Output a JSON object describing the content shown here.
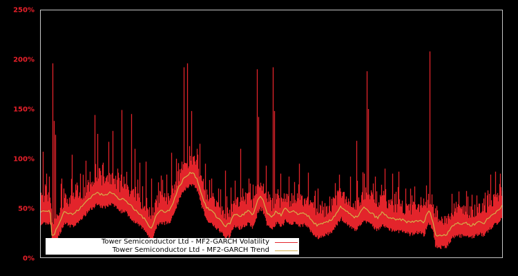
{
  "chart_data": {
    "type": "line",
    "title": "",
    "xlabel": "",
    "ylabel": "",
    "ylim": [
      0,
      250
    ],
    "yticks": [
      "0%",
      "50%",
      "100%",
      "150%",
      "200%",
      "250%"
    ],
    "ytick_values": [
      0,
      50,
      100,
      150,
      200,
      250
    ],
    "grid": false,
    "legend_position": "lower-left",
    "background": "#000000",
    "axis_color": "#c8c8c8",
    "series": [
      {
        "name": "Tower Semiconductor Ltd - MF2-GARCH Volatility",
        "color": "#e3242b",
        "band_low_offset": [
          -14,
          -10
        ],
        "band_high_offset": [
          6,
          20
        ],
        "spikes": [
          {
            "x": 0.004,
            "value": 107
          },
          {
            "x": 0.012,
            "value": 85
          },
          {
            "x": 0.018,
            "value": 82
          },
          {
            "x": 0.025,
            "value": 196
          },
          {
            "x": 0.028,
            "value": 138
          },
          {
            "x": 0.032,
            "value": 124
          },
          {
            "x": 0.045,
            "value": 80
          },
          {
            "x": 0.05,
            "value": 70
          },
          {
            "x": 0.068,
            "value": 104
          },
          {
            "x": 0.078,
            "value": 76
          },
          {
            "x": 0.085,
            "value": 85
          },
          {
            "x": 0.098,
            "value": 98
          },
          {
            "x": 0.106,
            "value": 87
          },
          {
            "x": 0.117,
            "value": 144
          },
          {
            "x": 0.123,
            "value": 125
          },
          {
            "x": 0.135,
            "value": 96
          },
          {
            "x": 0.146,
            "value": 117
          },
          {
            "x": 0.155,
            "value": 128
          },
          {
            "x": 0.166,
            "value": 90
          },
          {
            "x": 0.175,
            "value": 149
          },
          {
            "x": 0.18,
            "value": 82
          },
          {
            "x": 0.196,
            "value": 145
          },
          {
            "x": 0.203,
            "value": 110
          },
          {
            "x": 0.214,
            "value": 96
          },
          {
            "x": 0.227,
            "value": 97
          },
          {
            "x": 0.24,
            "value": 80
          },
          {
            "x": 0.26,
            "value": 83
          },
          {
            "x": 0.272,
            "value": 84
          },
          {
            "x": 0.283,
            "value": 106
          },
          {
            "x": 0.293,
            "value": 100
          },
          {
            "x": 0.305,
            "value": 97
          },
          {
            "x": 0.31,
            "value": 192
          },
          {
            "x": 0.318,
            "value": 196
          },
          {
            "x": 0.327,
            "value": 148
          },
          {
            "x": 0.338,
            "value": 110
          },
          {
            "x": 0.345,
            "value": 115
          },
          {
            "x": 0.356,
            "value": 95
          },
          {
            "x": 0.37,
            "value": 80
          },
          {
            "x": 0.385,
            "value": 70
          },
          {
            "x": 0.4,
            "value": 88
          },
          {
            "x": 0.42,
            "value": 78
          },
          {
            "x": 0.433,
            "value": 110
          },
          {
            "x": 0.45,
            "value": 80
          },
          {
            "x": 0.468,
            "value": 190
          },
          {
            "x": 0.472,
            "value": 142
          },
          {
            "x": 0.488,
            "value": 93
          },
          {
            "x": 0.503,
            "value": 192
          },
          {
            "x": 0.506,
            "value": 148
          },
          {
            "x": 0.52,
            "value": 85
          },
          {
            "x": 0.538,
            "value": 82
          },
          {
            "x": 0.56,
            "value": 95
          },
          {
            "x": 0.58,
            "value": 86
          },
          {
            "x": 0.6,
            "value": 70
          },
          {
            "x": 0.625,
            "value": 62
          },
          {
            "x": 0.645,
            "value": 68
          },
          {
            "x": 0.67,
            "value": 82
          },
          {
            "x": 0.684,
            "value": 118
          },
          {
            "x": 0.7,
            "value": 85
          },
          {
            "x": 0.706,
            "value": 188
          },
          {
            "x": 0.709,
            "value": 150
          },
          {
            "x": 0.725,
            "value": 82
          },
          {
            "x": 0.745,
            "value": 90
          },
          {
            "x": 0.762,
            "value": 85
          },
          {
            "x": 0.775,
            "value": 87
          },
          {
            "x": 0.79,
            "value": 70
          },
          {
            "x": 0.81,
            "value": 72
          },
          {
            "x": 0.83,
            "value": 60
          },
          {
            "x": 0.843,
            "value": 208
          },
          {
            "x": 0.86,
            "value": 48
          },
          {
            "x": 0.89,
            "value": 60
          },
          {
            "x": 0.905,
            "value": 67
          },
          {
            "x": 0.925,
            "value": 62
          },
          {
            "x": 0.945,
            "value": 63
          },
          {
            "x": 0.96,
            "value": 60
          },
          {
            "x": 0.975,
            "value": 84
          },
          {
            "x": 0.985,
            "value": 87
          },
          {
            "x": 0.995,
            "value": 85
          }
        ]
      },
      {
        "name": "Tower Semiconductor Ltd - MF2-GARCH Trend",
        "color": "#d4b04a",
        "x": [
          0,
          0.02,
          0.022,
          0.024,
          0.03,
          0.04,
          0.05,
          0.06,
          0.07,
          0.08,
          0.09,
          0.1,
          0.11,
          0.12,
          0.13,
          0.14,
          0.15,
          0.16,
          0.17,
          0.18,
          0.19,
          0.2,
          0.21,
          0.22,
          0.23,
          0.24,
          0.25,
          0.26,
          0.27,
          0.28,
          0.29,
          0.3,
          0.31,
          0.32,
          0.33,
          0.34,
          0.35,
          0.36,
          0.37,
          0.38,
          0.39,
          0.4,
          0.41,
          0.42,
          0.43,
          0.44,
          0.45,
          0.46,
          0.47,
          0.475,
          0.48,
          0.49,
          0.5,
          0.51,
          0.52,
          0.53,
          0.54,
          0.55,
          0.56,
          0.57,
          0.58,
          0.59,
          0.6,
          0.61,
          0.62,
          0.63,
          0.64,
          0.65,
          0.66,
          0.67,
          0.68,
          0.69,
          0.7,
          0.71,
          0.72,
          0.73,
          0.74,
          0.75,
          0.76,
          0.77,
          0.78,
          0.79,
          0.8,
          0.81,
          0.82,
          0.83,
          0.84,
          0.845,
          0.85,
          0.855,
          0.86,
          0.87,
          0.88,
          0.89,
          0.9,
          0.91,
          0.92,
          0.93,
          0.94,
          0.95,
          0.96,
          0.97,
          0.98,
          0.99,
          1.0
        ],
        "values": [
          47,
          47,
          44,
          22,
          25,
          36,
          47,
          45,
          44,
          48,
          52,
          58,
          62,
          66,
          64,
          63,
          67,
          65,
          58,
          60,
          55,
          50,
          46,
          42,
          36,
          30,
          43,
          48,
          47,
          48,
          60,
          72,
          80,
          84,
          87,
          78,
          62,
          50,
          48,
          42,
          38,
          32,
          35,
          45,
          42,
          44,
          48,
          42,
          58,
          62,
          60,
          46,
          40,
          48,
          43,
          50,
          45,
          47,
          44,
          46,
          42,
          36,
          33,
          34,
          36,
          38,
          45,
          52,
          48,
          44,
          40,
          44,
          51,
          47,
          44,
          40,
          46,
          42,
          40,
          38,
          39,
          37,
          36,
          37,
          38,
          35,
          48,
          44,
          38,
          24,
          22,
          23,
          24,
          32,
          35,
          34,
          36,
          33,
          34,
          37,
          35,
          40,
          44,
          48,
          53
        ]
      }
    ]
  },
  "legend": {
    "items": [
      {
        "label": "Tower Semiconductor Ltd - MF2-GARCH Volatility",
        "color": "#e3242b"
      },
      {
        "label": "Tower Semiconductor Ltd - MF2-GARCH Trend",
        "color": "#d4b04a"
      }
    ]
  },
  "axis": {
    "y_labels": [
      "250%",
      "200%",
      "150%",
      "100%",
      "50%",
      "0%"
    ]
  }
}
